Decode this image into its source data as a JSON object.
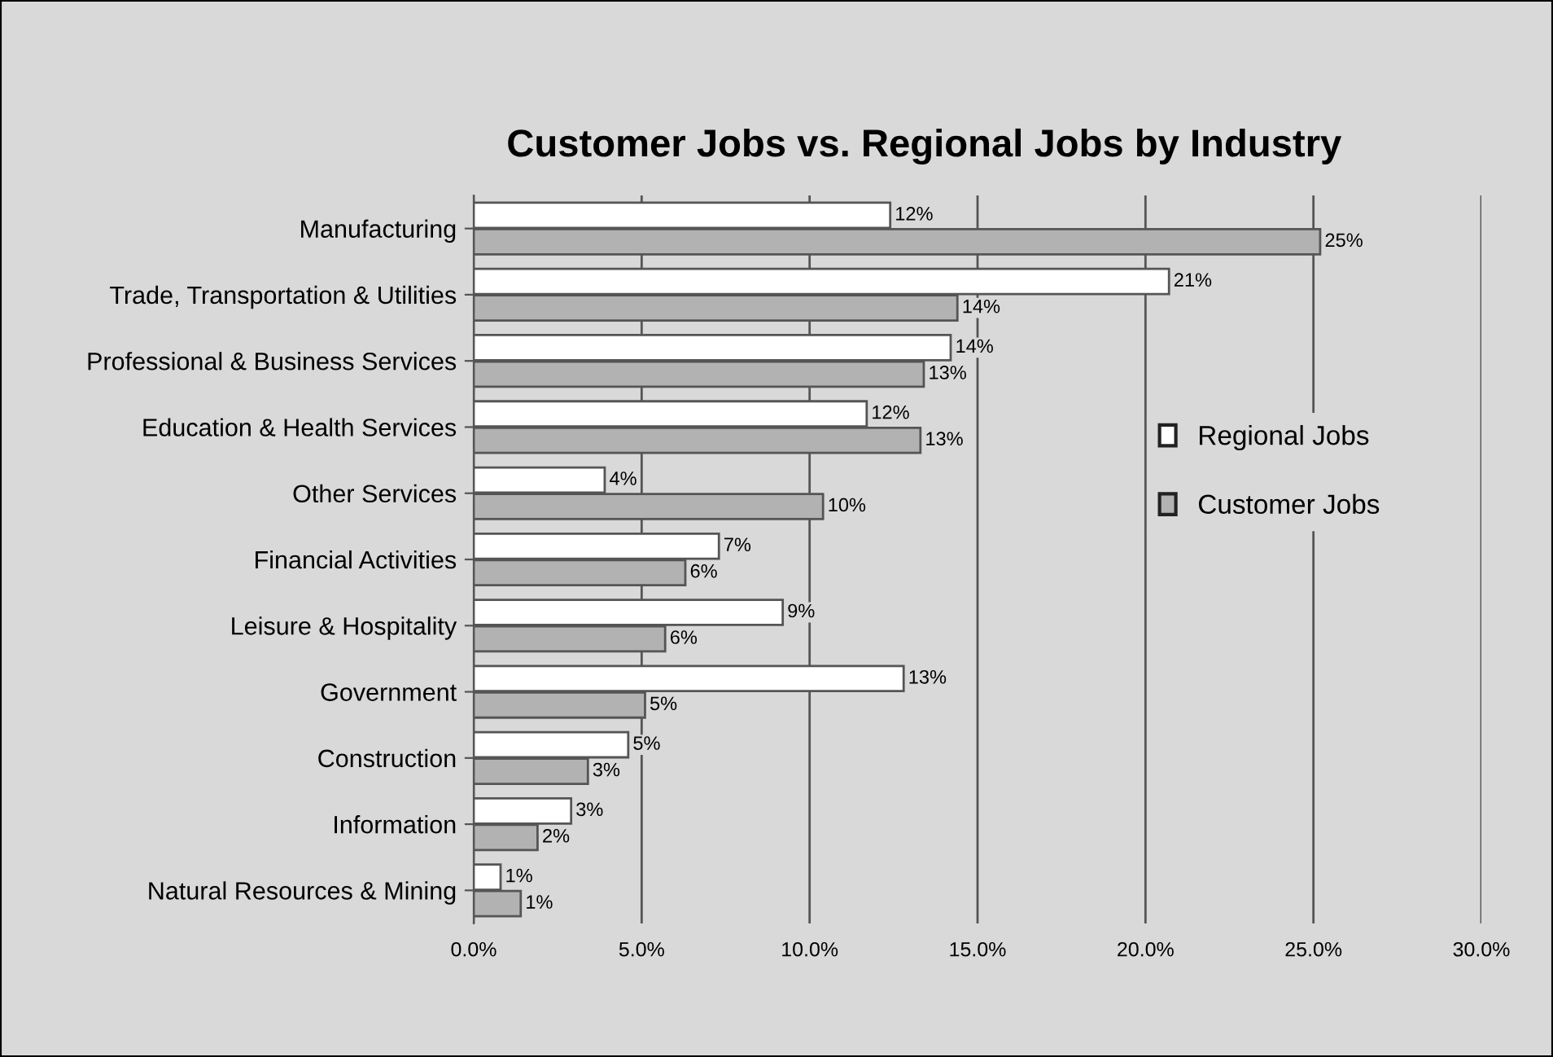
{
  "chart_data": {
    "type": "bar",
    "orientation": "horizontal",
    "title": "Customer Jobs vs. Regional Jobs by Industry",
    "categories": [
      "Manufacturing",
      "Trade, Transportation & Utilities",
      "Professional & Business Services",
      "Education & Health Services",
      "Other Services",
      "Financial Activities",
      "Leisure & Hospitality",
      "Government",
      "Construction",
      "Information",
      "Natural Resources & Mining"
    ],
    "series": [
      {
        "name": "Regional Jobs",
        "color": "#ffffff",
        "values": [
          12.4,
          20.7,
          14.2,
          11.7,
          3.9,
          7.3,
          9.2,
          12.8,
          4.6,
          2.9,
          0.8
        ],
        "value_labels": [
          "12%",
          "21%",
          "14%",
          "12%",
          "4%",
          "7%",
          "9%",
          "13%",
          "5%",
          "3%",
          "1%"
        ]
      },
      {
        "name": "Customer Jobs",
        "color": "#b2b2b2",
        "values": [
          25.2,
          14.4,
          13.4,
          13.3,
          10.4,
          6.3,
          5.7,
          5.1,
          3.4,
          1.9,
          1.4
        ],
        "value_labels": [
          "25%",
          "14%",
          "13%",
          "13%",
          "10%",
          "6%",
          "6%",
          "5%",
          "3%",
          "2%",
          "1%"
        ]
      }
    ],
    "xlim": [
      0,
      30
    ],
    "xticks": [
      {
        "value": 0,
        "label": "0.0%"
      },
      {
        "value": 5,
        "label": "5.0%"
      },
      {
        "value": 10,
        "label": "10.0%"
      },
      {
        "value": 15,
        "label": "15.0%"
      },
      {
        "value": 20,
        "label": "20.0%"
      },
      {
        "value": 25,
        "label": "25.0%"
      },
      {
        "value": 30,
        "label": "30.0%"
      }
    ],
    "grid": "x",
    "legend": "right"
  }
}
